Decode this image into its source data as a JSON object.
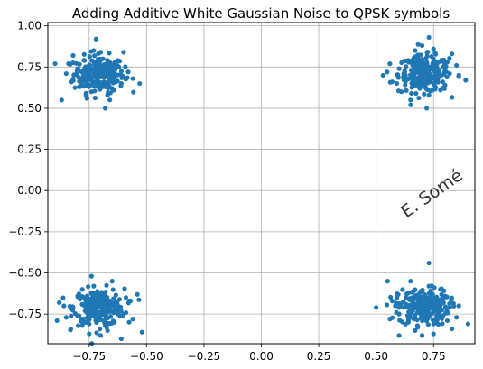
{
  "chart_data": {
    "type": "scatter",
    "title": "Adding Additive White Gaussian Noise to QPSK symbols",
    "xlabel": "",
    "ylabel": "",
    "xlim": [
      -0.93,
      0.93
    ],
    "ylim": [
      -0.93,
      1.02
    ],
    "xticks": [
      -0.75,
      -0.5,
      -0.25,
      0.0,
      0.25,
      0.5,
      0.75
    ],
    "xtick_labels": [
      "−0.75",
      "−0.50",
      "−0.25",
      "0.00",
      "0.25",
      "0.50",
      "0.75"
    ],
    "yticks": [
      1.0,
      0.75,
      0.5,
      0.25,
      0.0,
      -0.25,
      -0.5,
      -0.75
    ],
    "ytick_labels": [
      "1.00",
      "0.75",
      "0.50",
      "0.25",
      "0.00",
      "−0.25",
      "−0.50",
      "−0.75"
    ],
    "grid": true,
    "point_color": "#1f77b4",
    "clusters": [
      {
        "center": [
          -0.707,
          0.707
        ],
        "points": [
          [
            -0.73,
            0.7
          ],
          [
            -0.7,
            0.74
          ],
          [
            -0.68,
            0.69
          ],
          [
            -0.75,
            0.72
          ],
          [
            -0.71,
            0.66
          ],
          [
            -0.66,
            0.73
          ],
          [
            -0.78,
            0.68
          ],
          [
            -0.72,
            0.78
          ],
          [
            -0.69,
            0.63
          ],
          [
            -0.63,
            0.7
          ],
          [
            -0.8,
            0.74
          ],
          [
            -0.74,
            0.6
          ],
          [
            -0.64,
            0.77
          ],
          [
            -0.83,
            0.66
          ],
          [
            -0.7,
            0.84
          ],
          [
            -0.61,
            0.65
          ],
          [
            -0.77,
            0.79
          ],
          [
            -0.67,
            0.58
          ],
          [
            -0.58,
            0.72
          ],
          [
            -0.85,
            0.71
          ],
          [
            -0.72,
            0.92
          ],
          [
            -0.68,
            0.5
          ],
          [
            -0.53,
            0.65
          ],
          [
            -0.87,
            0.55
          ],
          [
            -0.6,
            0.84
          ],
          [
            -0.82,
            0.82
          ],
          [
            -0.76,
            0.56
          ],
          [
            -0.65,
            0.62
          ],
          [
            -0.71,
            0.71
          ],
          [
            -0.74,
            0.67
          ],
          [
            -0.62,
            0.75
          ],
          [
            -0.79,
            0.63
          ],
          [
            -0.69,
            0.8
          ],
          [
            -0.56,
            0.68
          ],
          [
            -0.84,
            0.77
          ],
          [
            -0.73,
            0.85
          ],
          [
            -0.66,
            0.55
          ],
          [
            -0.77,
            0.74
          ],
          [
            -0.7,
            0.69
          ],
          [
            -0.64,
            0.66
          ]
        ]
      },
      {
        "center": [
          0.707,
          0.707
        ],
        "points": [
          [
            0.71,
            0.7
          ],
          [
            0.68,
            0.74
          ],
          [
            0.74,
            0.68
          ],
          [
            0.7,
            0.66
          ],
          [
            0.66,
            0.71
          ],
          [
            0.76,
            0.73
          ],
          [
            0.72,
            0.78
          ],
          [
            0.63,
            0.68
          ],
          [
            0.79,
            0.66
          ],
          [
            0.69,
            0.62
          ],
          [
            0.75,
            0.8
          ],
          [
            0.6,
            0.74
          ],
          [
            0.82,
            0.71
          ],
          [
            0.67,
            0.85
          ],
          [
            0.73,
            0.58
          ],
          [
            0.57,
            0.66
          ],
          [
            0.85,
            0.76
          ],
          [
            0.64,
            0.79
          ],
          [
            0.78,
            0.61
          ],
          [
            0.7,
            0.88
          ],
          [
            0.73,
            0.93
          ],
          [
            0.72,
            0.5
          ],
          [
            0.53,
            0.7
          ],
          [
            0.89,
            0.67
          ],
          [
            0.61,
            0.6
          ],
          [
            0.83,
            0.83
          ],
          [
            0.65,
            0.55
          ],
          [
            0.77,
            0.69
          ],
          [
            0.69,
            0.72
          ],
          [
            0.74,
            0.75
          ],
          [
            0.62,
            0.71
          ],
          [
            0.8,
            0.64
          ],
          [
            0.68,
            0.82
          ],
          [
            0.56,
            0.77
          ],
          [
            0.86,
            0.7
          ],
          [
            0.71,
            0.63
          ],
          [
            0.66,
            0.67
          ],
          [
            0.75,
            0.86
          ],
          [
            0.59,
            0.65
          ],
          [
            0.81,
            0.78
          ]
        ]
      },
      {
        "center": [
          -0.707,
          -0.707
        ],
        "points": [
          [
            -0.71,
            -0.7
          ],
          [
            -0.68,
            -0.74
          ],
          [
            -0.74,
            -0.68
          ],
          [
            -0.7,
            -0.66
          ],
          [
            -0.66,
            -0.72
          ],
          [
            -0.76,
            -0.73
          ],
          [
            -0.72,
            -0.78
          ],
          [
            -0.63,
            -0.69
          ],
          [
            -0.79,
            -0.66
          ],
          [
            -0.69,
            -0.62
          ],
          [
            -0.75,
            -0.81
          ],
          [
            -0.6,
            -0.75
          ],
          [
            -0.82,
            -0.71
          ],
          [
            -0.67,
            -0.85
          ],
          [
            -0.73,
            -0.58
          ],
          [
            -0.57,
            -0.67
          ],
          [
            -0.85,
            -0.77
          ],
          [
            -0.64,
            -0.8
          ],
          [
            -0.78,
            -0.6
          ],
          [
            -0.7,
            -0.88
          ],
          [
            -0.74,
            -0.52
          ],
          [
            -0.52,
            -0.86
          ],
          [
            -0.89,
            -0.79
          ],
          [
            -0.54,
            -0.63
          ],
          [
            -0.88,
            -0.68
          ],
          [
            -0.61,
            -0.9
          ],
          [
            -0.83,
            -0.84
          ],
          [
            -0.65,
            -0.55
          ],
          [
            -0.77,
            -0.7
          ],
          [
            -0.69,
            -0.72
          ],
          [
            -0.74,
            -0.75
          ],
          [
            -0.62,
            -0.71
          ],
          [
            -0.8,
            -0.64
          ],
          [
            -0.68,
            -0.82
          ],
          [
            -0.56,
            -0.78
          ],
          [
            -0.86,
            -0.7
          ],
          [
            -0.71,
            -0.63
          ],
          [
            -0.66,
            -0.67
          ],
          [
            -0.75,
            -0.87
          ],
          [
            -0.59,
            -0.65
          ]
        ]
      },
      {
        "center": [
          0.707,
          -0.707
        ],
        "points": [
          [
            0.71,
            -0.7
          ],
          [
            0.68,
            -0.74
          ],
          [
            0.74,
            -0.68
          ],
          [
            0.7,
            -0.66
          ],
          [
            0.66,
            -0.72
          ],
          [
            0.76,
            -0.73
          ],
          [
            0.72,
            -0.78
          ],
          [
            0.63,
            -0.69
          ],
          [
            0.79,
            -0.66
          ],
          [
            0.69,
            -0.62
          ],
          [
            0.75,
            -0.81
          ],
          [
            0.6,
            -0.75
          ],
          [
            0.82,
            -0.71
          ],
          [
            0.67,
            -0.85
          ],
          [
            0.73,
            -0.58
          ],
          [
            0.57,
            -0.67
          ],
          [
            0.85,
            -0.77
          ],
          [
            0.64,
            -0.8
          ],
          [
            0.78,
            -0.6
          ],
          [
            0.7,
            -0.88
          ],
          [
            0.73,
            -0.44
          ],
          [
            0.5,
            -0.71
          ],
          [
            0.9,
            -0.81
          ],
          [
            0.55,
            -0.55
          ],
          [
            0.6,
            -0.88
          ],
          [
            0.83,
            -0.84
          ],
          [
            0.65,
            -0.55
          ],
          [
            0.77,
            -0.7
          ],
          [
            0.69,
            -0.72
          ],
          [
            0.74,
            -0.75
          ],
          [
            0.62,
            -0.71
          ],
          [
            0.8,
            -0.64
          ],
          [
            0.68,
            -0.82
          ],
          [
            0.56,
            -0.78
          ],
          [
            0.86,
            -0.7
          ],
          [
            0.71,
            -0.63
          ],
          [
            0.66,
            -0.67
          ],
          [
            0.75,
            -0.87
          ],
          [
            0.59,
            -0.65
          ],
          [
            0.81,
            -0.79
          ]
        ]
      }
    ]
  },
  "watermark": {
    "text": "E. Somé"
  }
}
